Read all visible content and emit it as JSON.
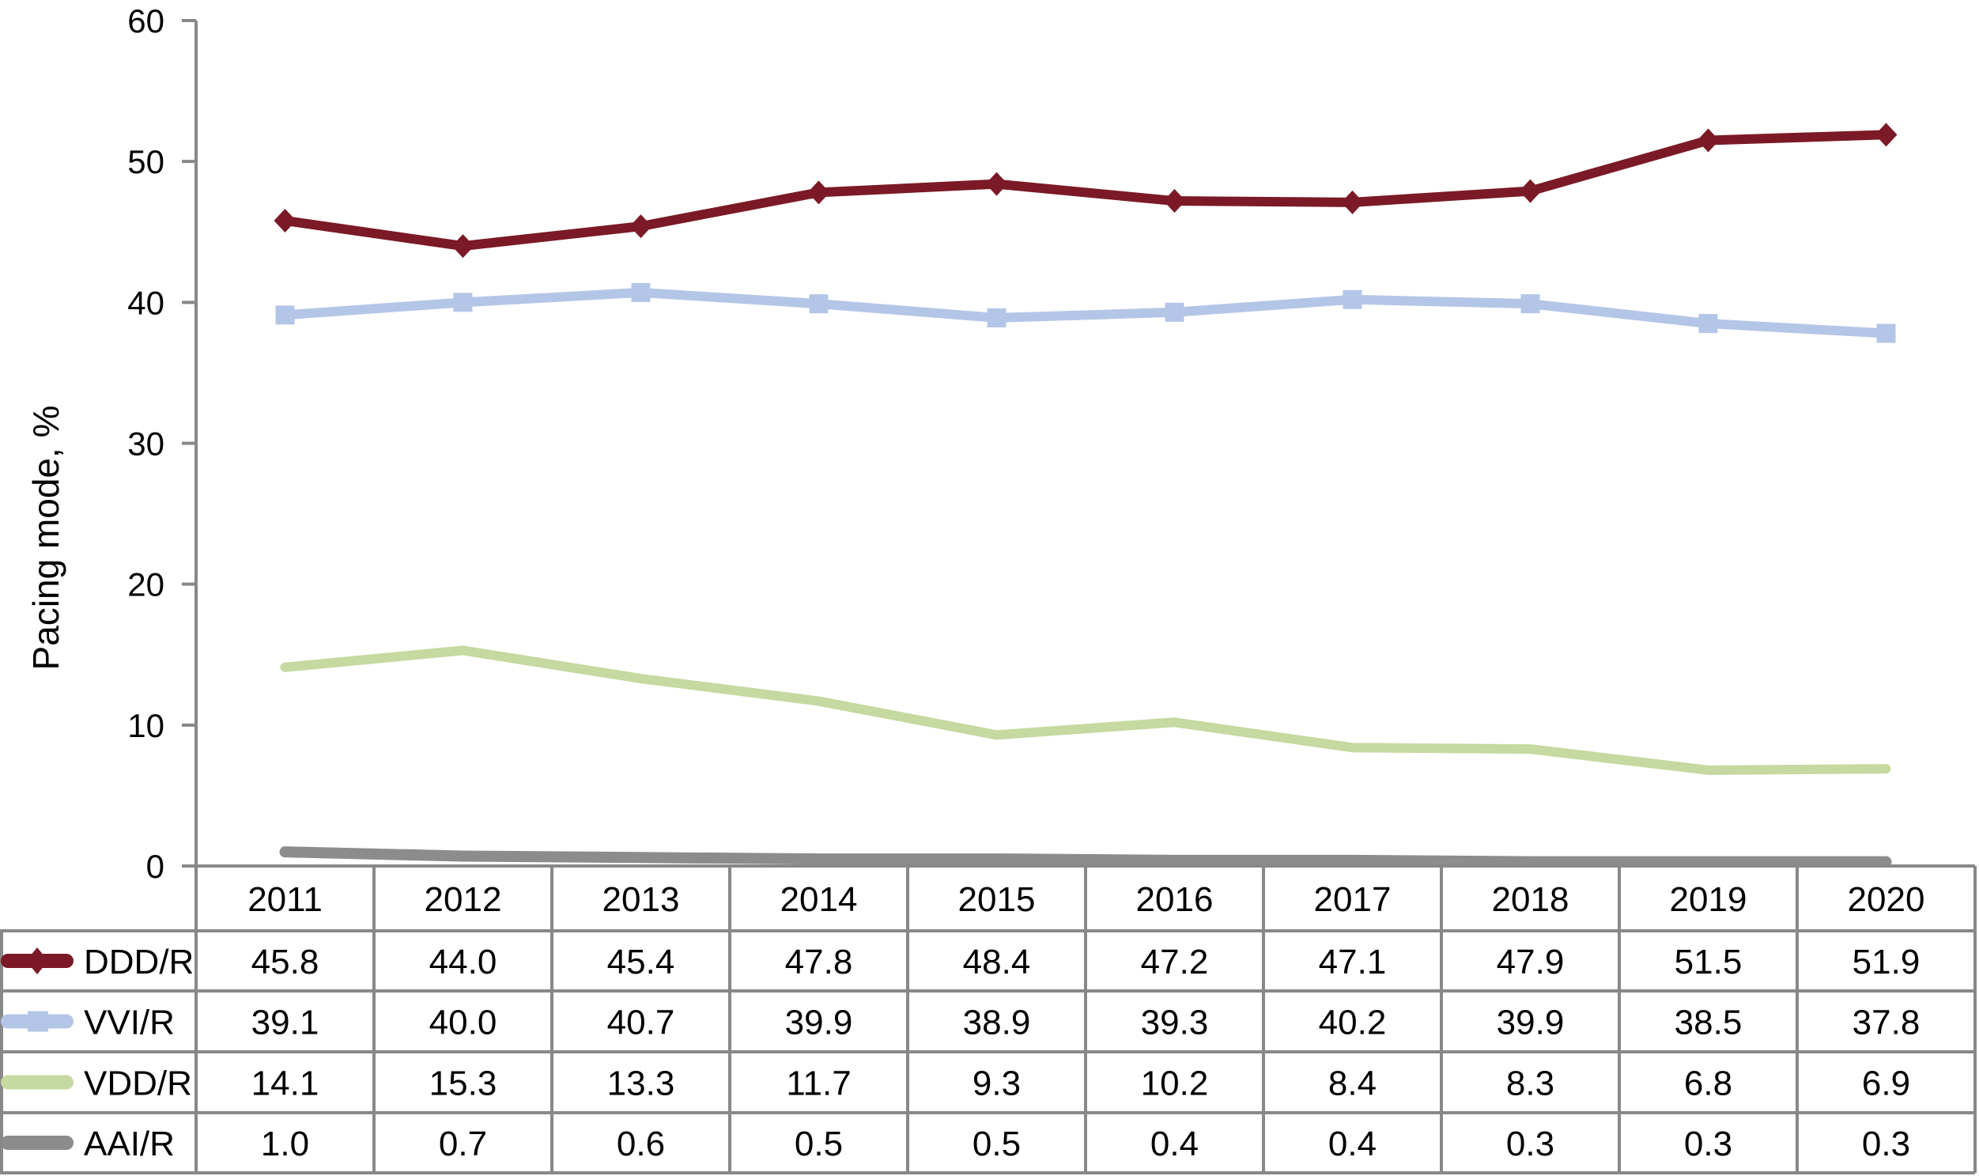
{
  "chart_data": {
    "type": "line",
    "ylabel": "Pacing mode, %",
    "ylim": [
      0,
      60
    ],
    "yticks": [
      0,
      10,
      20,
      30,
      40,
      50,
      60
    ],
    "grid": false,
    "legend_placement": "data-table-left",
    "categories": [
      "2011",
      "2012",
      "2013",
      "2014",
      "2015",
      "2016",
      "2017",
      "2018",
      "2019",
      "2020"
    ],
    "series": [
      {
        "name": "DDD/R",
        "color": "#7b1a26",
        "marker": "diamond",
        "values": [
          45.8,
          44.0,
          45.4,
          47.8,
          48.4,
          47.2,
          47.1,
          47.9,
          51.5,
          51.9
        ],
        "labels": [
          "45.8",
          "44.0",
          "45.4",
          "47.8",
          "48.4",
          "47.2",
          "47.1",
          "47.9",
          "51.5",
          "51.9"
        ]
      },
      {
        "name": "VVI/R",
        "color": "#b4c6e7",
        "marker": "square",
        "values": [
          39.1,
          40.0,
          40.7,
          39.9,
          38.9,
          39.3,
          40.2,
          39.9,
          38.5,
          37.8
        ],
        "labels": [
          "39.1",
          "40.0",
          "40.7",
          "39.9",
          "38.9",
          "39.3",
          "40.2",
          "39.9",
          "38.5",
          "37.8"
        ]
      },
      {
        "name": "VDD/R",
        "color": "#c5d9a0",
        "marker": "none",
        "values": [
          14.1,
          15.3,
          13.3,
          11.7,
          9.3,
          10.2,
          8.4,
          8.3,
          6.8,
          6.9
        ],
        "labels": [
          "14.1",
          "15.3",
          "13.3",
          "11.7",
          "9.3",
          "10.2",
          "8.4",
          "8.3",
          "6.8",
          "6.9"
        ]
      },
      {
        "name": "AAI/R",
        "color": "#8c8c8c",
        "marker": "none",
        "values": [
          1.0,
          0.7,
          0.6,
          0.5,
          0.5,
          0.4,
          0.4,
          0.3,
          0.3,
          0.3
        ],
        "labels": [
          "1.0",
          "0.7",
          "0.6",
          "0.5",
          "0.5",
          "0.4",
          "0.4",
          "0.3",
          "0.3",
          "0.3"
        ]
      }
    ]
  }
}
